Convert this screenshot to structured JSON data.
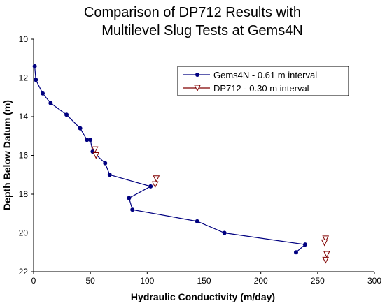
{
  "chart_data": {
    "type": "scatter",
    "title_line1": "Comparison of DP712 Results with",
    "title_line2": "Multilevel Slug Tests at Gems4N",
    "xlabel": "Hydraulic Conductivity (m/day)",
    "ylabel": "Depth Below Datum (m)",
    "xlim": [
      0,
      300
    ],
    "ylim": [
      10,
      22
    ],
    "y_inverted": true,
    "x_ticks": [
      "0",
      "50",
      "100",
      "150",
      "200",
      "250",
      "300"
    ],
    "y_ticks": [
      "10",
      "12",
      "14",
      "16",
      "18",
      "20",
      "22"
    ],
    "grid": false,
    "legend_position": "top-right",
    "series": [
      {
        "name": "Gems4N - 0.61 m interval",
        "color": "#000080",
        "marker": "circle",
        "line": true,
        "x": [
          1,
          2,
          8,
          15,
          29,
          41,
          47,
          50,
          52,
          63,
          67,
          103,
          84,
          87,
          144,
          168,
          239,
          231
        ],
        "y": [
          11.4,
          12.1,
          12.8,
          13.3,
          13.9,
          14.6,
          15.2,
          15.2,
          15.8,
          16.4,
          17.0,
          17.6,
          18.2,
          18.8,
          19.4,
          20.0,
          20.6,
          21.0
        ]
      },
      {
        "name": "DP712 - 0.30 m interval",
        "color": "#800000",
        "marker": "triangle-down",
        "line": false,
        "x": [
          54,
          55,
          108,
          107,
          257,
          256,
          258,
          257
        ],
        "y": [
          15.7,
          16.0,
          17.2,
          17.5,
          20.3,
          20.5,
          21.1,
          21.4
        ]
      }
    ]
  }
}
